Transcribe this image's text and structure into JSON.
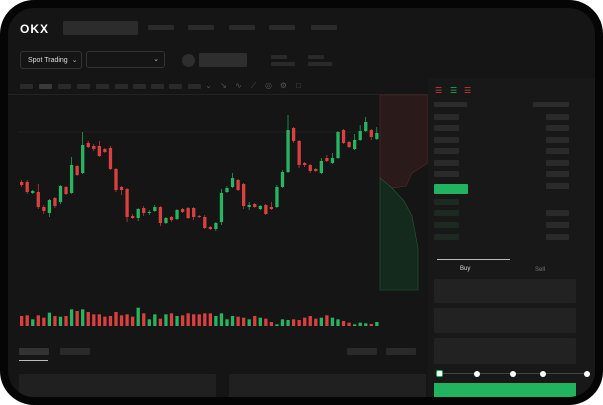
{
  "brand": {
    "logo": "OKX"
  },
  "header": {
    "market_select": "Spot Trading",
    "pair_select": ""
  },
  "toolbar": {
    "icons": [
      "indicator-icon",
      "draw-line-icon",
      "wave-icon",
      "ruler-icon",
      "camera-icon",
      "settings-icon",
      "fullscreen-icon"
    ]
  },
  "orderbook": {
    "view_icons": [
      "both-sides-icon",
      "bids-only-icon",
      "asks-only-icon"
    ]
  },
  "trade": {
    "buy_label": "Buy",
    "sell_label": "Sell",
    "slider_percent": 0
  },
  "colors": {
    "up": "#26b560",
    "down": "#d9403f",
    "bg": "#151515",
    "panel": "#1b1b1b",
    "accent": "#22b35e"
  },
  "chart_data": {
    "type": "candlestick",
    "candles": [
      [
        68,
        70,
        63,
        65
      ],
      [
        68,
        70,
        56,
        58
      ],
      [
        57,
        60,
        56,
        59
      ],
      [
        58,
        66,
        41,
        43
      ],
      [
        43,
        45,
        36,
        39
      ],
      [
        37,
        51,
        33,
        50
      ],
      [
        52,
        53,
        42,
        44
      ],
      [
        48,
        65,
        46,
        64
      ],
      [
        63,
        64,
        55,
        56
      ],
      [
        57,
        93,
        56,
        85
      ],
      [
        84,
        85,
        74,
        75
      ],
      [
        77,
        118,
        76,
        105
      ],
      [
        107,
        109,
        102,
        103
      ],
      [
        104,
        106,
        99,
        101
      ],
      [
        104,
        109,
        93,
        94
      ],
      [
        101,
        102,
        97,
        98
      ],
      [
        102,
        104,
        80,
        81
      ],
      [
        81,
        82,
        58,
        60
      ],
      [
        63,
        64,
        55,
        60
      ],
      [
        61,
        62,
        28,
        33
      ],
      [
        34,
        36,
        31,
        32
      ],
      [
        32,
        42,
        29,
        41
      ],
      [
        42,
        44,
        34,
        37
      ],
      [
        37,
        40,
        35,
        38
      ],
      [
        39,
        45,
        38,
        43
      ],
      [
        43,
        44,
        24,
        27
      ],
      [
        27,
        33,
        26,
        32
      ],
      [
        33,
        34,
        28,
        30
      ],
      [
        31,
        41,
        30,
        40
      ],
      [
        41,
        42,
        37,
        38
      ],
      [
        42,
        43,
        31,
        32
      ],
      [
        42,
        43,
        30,
        33
      ],
      [
        34,
        35,
        32,
        33
      ],
      [
        33,
        35,
        21,
        22
      ],
      [
        23,
        24,
        20,
        21
      ],
      [
        21,
        28,
        19,
        27
      ],
      [
        28,
        61,
        25,
        57
      ],
      [
        58,
        64,
        57,
        62
      ],
      [
        63,
        77,
        62,
        72
      ],
      [
        70,
        71,
        59,
        60
      ],
      [
        66,
        67,
        41,
        44
      ],
      [
        43,
        48,
        40,
        45
      ],
      [
        46,
        47,
        42,
        43
      ],
      [
        41,
        45,
        40,
        44
      ],
      [
        45,
        46,
        35,
        36
      ],
      [
        43,
        48,
        40,
        41
      ],
      [
        43,
        65,
        42,
        63
      ],
      [
        63,
        80,
        62,
        78
      ],
      [
        78,
        135,
        77,
        120
      ],
      [
        122,
        123,
        107,
        109
      ],
      [
        109,
        110,
        82,
        85
      ],
      [
        87,
        88,
        83,
        85
      ],
      [
        85,
        86,
        77,
        79
      ],
      [
        81,
        82,
        78,
        79
      ],
      [
        77,
        92,
        76,
        89
      ],
      [
        92,
        95,
        88,
        89
      ],
      [
        87,
        97,
        86,
        92
      ],
      [
        92,
        119,
        91,
        118
      ],
      [
        120,
        121,
        106,
        107
      ],
      [
        108,
        109,
        102,
        103
      ],
      [
        101,
        116,
        100,
        110
      ],
      [
        110,
        125,
        109,
        119
      ],
      [
        119,
        133,
        118,
        128
      ],
      [
        120,
        121,
        110,
        113
      ],
      [
        111,
        123,
        110,
        117
      ]
    ],
    "volumes": [
      30,
      32,
      20,
      32,
      25,
      40,
      30,
      28,
      30,
      50,
      45,
      50,
      42,
      35,
      35,
      28,
      30,
      42,
      32,
      35,
      28,
      55,
      38,
      20,
      35,
      22,
      35,
      38,
      30,
      32,
      38,
      35,
      35,
      38,
      38,
      30,
      38,
      20,
      30,
      28,
      25,
      20,
      30,
      25,
      22,
      12,
      5,
      20,
      18,
      20,
      18,
      25,
      30,
      22,
      25,
      32,
      25,
      20,
      15,
      10,
      5,
      10,
      8,
      6,
      12
    ]
  }
}
